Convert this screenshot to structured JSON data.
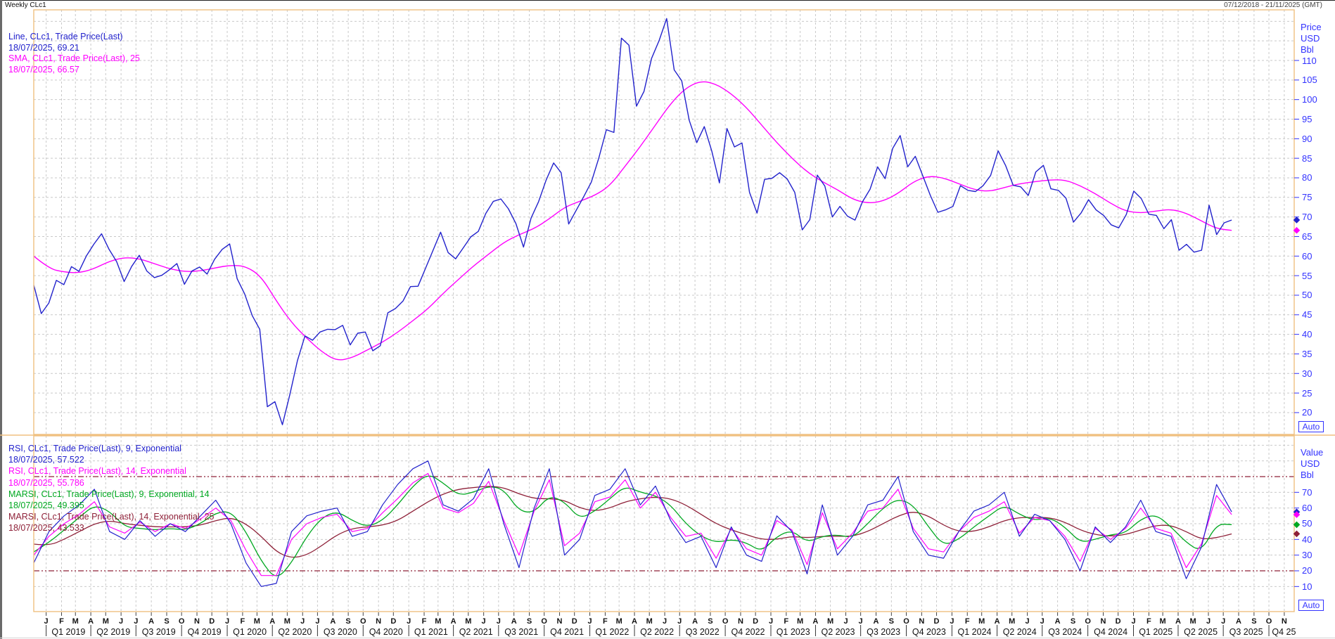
{
  "window": {
    "title": "Weekly CLc1",
    "date_range": "07/12/2018 - 21/11/2025 (GMT)"
  },
  "colors": {
    "border": "#f0c080",
    "grid": "#c9c9c9",
    "axis_text": "#3232ff",
    "guide": "#8e2038",
    "price_line": "#2222cc",
    "sma": "#ff00ff",
    "rsi9": "#2222cc",
    "rsi14": "#ff00ff",
    "marsi9": "#00a820",
    "marsi14": "#8e2038"
  },
  "price_panel": {
    "axis_title": [
      "Price",
      "USD",
      "Bbl"
    ],
    "ticks": [
      110,
      105,
      100,
      95,
      90,
      85,
      80,
      75,
      70,
      65,
      60,
      55,
      50,
      45,
      40,
      35,
      30,
      25,
      20
    ],
    "auto_label": "Auto",
    "legend": [
      {
        "label": "Line, CLc1, Trade Price(Last)",
        "value": "18/07/2025, 69.21",
        "color": "#2222cc"
      },
      {
        "label": "SMA, CLc1, Trade Price(Last),  25",
        "value": "18/07/2025, 66.57",
        "color": "#ff00ff"
      }
    ],
    "markers": [
      {
        "value": 69.21,
        "color": "#2222cc"
      },
      {
        "value": 66.57,
        "color": "#ff00ff"
      }
    ]
  },
  "indicator_panel": {
    "axis_title": [
      "Value",
      "USD",
      "Bbl"
    ],
    "ticks": [
      70,
      60,
      50,
      40,
      30,
      20,
      10
    ],
    "overbought": 80,
    "oversold": 20,
    "auto_label": "Auto",
    "legend": [
      {
        "label": "RSI, CLc1, Trade Price(Last),  9, Exponential",
        "value": "18/07/2025, 57.522",
        "color": "#2222cc"
      },
      {
        "label": "RSI, CLc1, Trade Price(Last),  14, Exponential",
        "value": "18/07/2025, 55.786",
        "color": "#ff00ff"
      },
      {
        "label": "MARSI, CLc1, Trade Price(Last),  9, Exponential, 14",
        "value": "18/07/2025, 49.395",
        "color": "#00a820"
      },
      {
        "label": "MARSI, CLc1, Trade Price(Last),  14, Exponential, 25",
        "value": "18/07/2025, 43.533",
        "color": "#8e2038"
      }
    ],
    "markers": [
      {
        "value": 57.522,
        "color": "#2222cc"
      },
      {
        "value": 55.786,
        "color": "#ff00ff"
      },
      {
        "value": 49.395,
        "color": "#00a820"
      },
      {
        "value": 43.533,
        "color": "#8e2038"
      }
    ]
  },
  "time_axis": {
    "start": "2018-12-07",
    "end": "2025-11-21",
    "months": [
      "J",
      "F",
      "M",
      "A",
      "M",
      "J",
      "J",
      "A",
      "S",
      "O",
      "N",
      "D",
      "J",
      "F",
      "M",
      "A",
      "M",
      "J",
      "J",
      "A",
      "S",
      "O",
      "N",
      "D",
      "J",
      "F",
      "M",
      "A",
      "M",
      "J",
      "J",
      "A",
      "S",
      "O",
      "N",
      "D",
      "J",
      "F",
      "M",
      "A",
      "M",
      "J",
      "J",
      "A",
      "S",
      "O",
      "N",
      "D",
      "J",
      "F",
      "M",
      "A",
      "M",
      "J",
      "J",
      "A",
      "S",
      "O",
      "N",
      "D",
      "J",
      "F",
      "M",
      "A",
      "M",
      "J",
      "J",
      "A",
      "S",
      "O",
      "N",
      "D",
      "J",
      "F",
      "M",
      "A",
      "M",
      "J",
      "J",
      "A",
      "S",
      "O",
      "N"
    ],
    "quarters": [
      "Q1 2019",
      "Q2 2019",
      "Q3 2019",
      "Q4 2019",
      "Q1 2020",
      "Q2 2020",
      "Q3 2020",
      "Q4 2020",
      "Q1 2021",
      "Q2 2021",
      "Q3 2021",
      "Q4 2021",
      "Q1 2022",
      "Q2 2022",
      "Q3 2022",
      "Q4 2022",
      "Q1 2023",
      "Q2 2023",
      "Q3 2023",
      "Q4 2023",
      "Q1 2024",
      "Q2 2024",
      "Q3 2024",
      "Q4 2024",
      "Q1 2025",
      "Q2 2025",
      "Q3 2025",
      "Q4 25"
    ]
  },
  "chart_data": [
    {
      "type": "line",
      "title": "CLc1 weekly trade price with 25-week SMA",
      "x_start": "2018-12-07",
      "x_end": "2025-07-18",
      "ylabel": "Price USD Bbl",
      "ylim": [
        20,
        110
      ],
      "grid": true,
      "series": [
        {
          "name": "Line, CLc1, Trade Price(Last)",
          "color": "#2222cc",
          "sampling": "semi-monthly",
          "values": [
            52.6,
            45.3,
            48.0,
            53.8,
            52.7,
            57.3,
            56.1,
            60.1,
            63.1,
            65.7,
            61.7,
            58.6,
            53.5,
            57.4,
            60.2,
            56.2,
            54.5,
            55.1,
            56.5,
            58.1,
            52.8,
            56.2,
            57.2,
            55.4,
            59.2,
            61.7,
            63.1,
            54.2,
            50.3,
            44.8,
            41.3,
            21.5,
            22.8,
            16.9,
            24.7,
            33.3,
            39.6,
            38.5,
            40.6,
            41.3,
            41.2,
            42.3,
            37.3,
            40.3,
            40.6,
            35.8,
            37.1,
            45.5,
            46.6,
            48.5,
            52.2,
            52.3,
            56.9,
            61.5,
            66.1,
            60.9,
            59.3,
            62.1,
            64.9,
            66.3,
            70.9,
            74.0,
            74.6,
            72.1,
            68.3,
            62.3,
            69.7,
            73.9,
            79.4,
            83.8,
            81.3,
            68.2,
            71.7,
            75.2,
            78.9,
            85.1,
            92.3,
            91.6,
            115.7,
            113.9,
            98.3,
            102.1,
            110.5,
            115.1,
            120.7,
            107.6,
            104.8,
            94.7,
            89.0,
            93.1,
            86.8,
            78.7,
            92.6,
            87.9,
            88.9,
            76.3,
            71.0,
            79.6,
            79.9,
            81.3,
            79.7,
            76.3,
            66.7,
            69.3,
            80.7,
            77.9,
            70.0,
            72.7,
            70.2,
            69.2,
            73.9,
            77.1,
            82.8,
            79.8,
            87.5,
            90.8,
            82.8,
            85.5,
            80.5,
            75.5,
            71.2,
            71.8,
            72.7,
            78.0,
            76.8,
            76.5,
            78.0,
            80.6,
            86.9,
            83.1,
            78.1,
            77.7,
            75.5,
            81.5,
            83.2,
            77.2,
            76.8,
            74.8,
            68.7,
            71.0,
            74.4,
            71.8,
            70.4,
            68.0,
            67.2,
            70.6,
            76.6,
            74.7,
            70.7,
            70.4,
            67.0,
            69.3,
            61.5,
            63.0,
            61.0,
            61.5,
            73.0,
            65.5,
            68.5,
            69.21
          ]
        },
        {
          "name": "SMA, CLc1, Trade Price(Last), 25",
          "color": "#ff00ff",
          "sampling": "monthly",
          "values": [
            60.0,
            56.8,
            55.9,
            55.7,
            56.8,
            58.7,
            59.7,
            59.3,
            58.0,
            56.7,
            56.0,
            56.2,
            57.0,
            57.7,
            57.4,
            54.8,
            48.5,
            43.0,
            39.0,
            35.5,
            33.2,
            34.0,
            36.0,
            38.0,
            40.5,
            43.5,
            46.5,
            50.5,
            54.0,
            57.5,
            60.5,
            63.5,
            65.5,
            67.0,
            69.5,
            72.5,
            74.0,
            75.5,
            78.0,
            83.0,
            88.0,
            93.5,
            99.0,
            103.0,
            104.8,
            104.0,
            101.5,
            98.0,
            93.5,
            89.0,
            85.0,
            81.5,
            79.0,
            77.0,
            74.5,
            73.5,
            74.0,
            76.0,
            79.0,
            80.5,
            80.0,
            78.5,
            77.0,
            76.5,
            77.5,
            78.5,
            79.0,
            79.5,
            79.5,
            78.0,
            76.0,
            73.5,
            71.5,
            71.0,
            71.5,
            72.0,
            71.0,
            69.0,
            67.0,
            66.57
          ]
        }
      ]
    },
    {
      "type": "line",
      "title": "RSI and MARSI of CLc1 weekly trade price",
      "x_start": "2018-12-07",
      "x_end": "2025-07-18",
      "ylabel": "Value USD Bbl",
      "ylim": [
        0,
        100
      ],
      "guides": [
        80,
        20
      ],
      "grid": true,
      "series": [
        {
          "name": "RSI 9 Exponential",
          "color": "#2222cc",
          "sampling": "monthly",
          "values": [
            25,
            45,
            55,
            62,
            72,
            45,
            40,
            52,
            42,
            50,
            45,
            55,
            65,
            50,
            25,
            10,
            12,
            45,
            55,
            58,
            60,
            42,
            45,
            62,
            75,
            85,
            90,
            62,
            58,
            66,
            85,
            50,
            22,
            60,
            85,
            30,
            40,
            68,
            72,
            85,
            62,
            74,
            52,
            38,
            42,
            22,
            48,
            30,
            26,
            55,
            45,
            18,
            62,
            30,
            42,
            62,
            65,
            80,
            45,
            30,
            28,
            45,
            58,
            62,
            70,
            42,
            56,
            52,
            40,
            20,
            48,
            38,
            48,
            65,
            45,
            42,
            15,
            35,
            75,
            57.5
          ]
        },
        {
          "name": "RSI 14 Exponential",
          "color": "#ff00ff",
          "sampling": "monthly",
          "values": [
            30,
            42,
            50,
            56,
            64,
            48,
            44,
            51,
            45,
            50,
            47,
            53,
            60,
            52,
            33,
            17,
            17,
            40,
            50,
            54,
            56,
            45,
            47,
            57,
            66,
            76,
            82,
            60,
            57,
            63,
            77,
            52,
            30,
            58,
            78,
            36,
            44,
            64,
            67,
            78,
            60,
            70,
            54,
            42,
            44,
            28,
            47,
            34,
            30,
            52,
            46,
            24,
            57,
            34,
            44,
            58,
            60,
            72,
            47,
            34,
            32,
            45,
            54,
            58,
            64,
            44,
            54,
            52,
            42,
            26,
            47,
            40,
            47,
            60,
            47,
            44,
            22,
            37,
            68,
            55.8
          ]
        },
        {
          "name": "MARSI 9 Exponential 14",
          "color": "#00a820",
          "sampling": "monthly",
          "values": [
            32,
            38,
            46,
            54,
            62,
            58,
            48,
            47,
            46,
            47,
            46,
            50,
            57,
            58,
            45,
            26,
            14,
            25,
            42,
            54,
            58,
            52,
            48,
            52,
            62,
            74,
            82,
            76,
            68,
            70,
            74,
            72,
            58,
            57,
            68,
            64,
            53,
            58,
            66,
            74,
            70,
            68,
            62,
            50,
            42,
            38,
            40,
            38,
            32,
            42,
            46,
            38,
            42,
            43,
            41,
            50,
            60,
            66,
            62,
            48,
            36,
            40,
            48,
            55,
            62,
            56,
            52,
            54,
            48,
            38,
            40,
            43,
            44,
            53,
            56,
            48,
            38,
            32,
            50,
            49.4
          ]
        },
        {
          "name": "MARSI 14 Exponential 25",
          "color": "#8e2038",
          "sampling": "monthly",
          "values": [
            37,
            36,
            40,
            45,
            50,
            52,
            50,
            49,
            48,
            48,
            48,
            49,
            52,
            54,
            50,
            42,
            32,
            28,
            30,
            36,
            43,
            47,
            48,
            49,
            52,
            58,
            64,
            69,
            72,
            73,
            74,
            73,
            69,
            66,
            66,
            65,
            60,
            58,
            60,
            64,
            66,
            67,
            66,
            62,
            56,
            50,
            46,
            43,
            40,
            40,
            42,
            41,
            42,
            42,
            42,
            45,
            50,
            55,
            58,
            55,
            49,
            45,
            45,
            48,
            52,
            54,
            54,
            54,
            51,
            46,
            43,
            42,
            43,
            46,
            49,
            49,
            45,
            40,
            41,
            43.5
          ]
        }
      ]
    }
  ]
}
